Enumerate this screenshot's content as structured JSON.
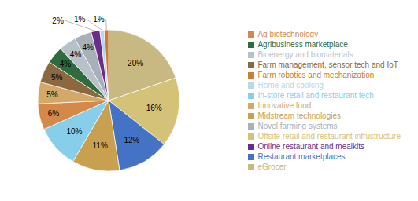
{
  "chart_data": {
    "type": "pie",
    "categories": [
      "eGrocer",
      "Offsite retail and restaurant infrustructure",
      "Restaurant marketplaces",
      "Midstream technologies",
      "In-store retail and restaurant tech",
      "Ag biotechnology",
      "Innovative food",
      "Farm management, sensor tech and IoT",
      "Agribusiness marketplace",
      "Bioenergy and biomaterials",
      "Novel farming systems",
      "Online restaurant and mealkits",
      "Home and cooking",
      "Farm robotics and mechanization"
    ],
    "values": [
      20,
      16,
      12,
      11,
      10,
      6,
      5,
      5,
      4,
      4,
      4,
      2,
      1,
      1
    ],
    "value_labels": [
      "20%",
      "16%",
      "12%",
      "11%",
      "10%",
      "6%",
      "5%",
      "5%",
      "4%",
      "4%",
      "4%",
      "2%",
      "1%",
      "1%"
    ],
    "colors": [
      "#C8B882",
      "#D4C278",
      "#4472C4",
      "#C8A050",
      "#87CEEB",
      "#D4884A",
      "#D4A868",
      "#8B6840",
      "#2E6B3E",
      "#B8C0C8",
      "#A8B0B8",
      "#6B2D8B",
      "#B8D8E8",
      "#C88030"
    ],
    "data_labels": true,
    "legend": "right"
  }
}
